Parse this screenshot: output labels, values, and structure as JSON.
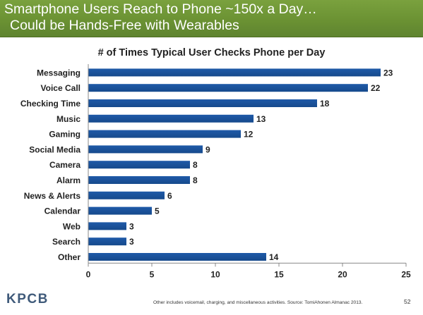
{
  "header": {
    "line1": "Smartphone Users Reach to Phone ~150x a Day…",
    "line2": "Could be Hands-Free with Wearables"
  },
  "footer": {
    "logo": "KPCB",
    "note": "Other includes voicemail, charging, and miscellaneous activities. Source: TomiAhonen Almanac 2013.",
    "page": "52"
  },
  "colors": {
    "header": "#6b9233",
    "bar": "#1f5aa8",
    "bar_dark": "#164a8c"
  },
  "chart_data": {
    "type": "bar",
    "orientation": "horizontal",
    "title": "# of Times Typical User Checks Phone per Day",
    "categories": [
      "Messaging",
      "Voice Call",
      "Checking Time",
      "Music",
      "Gaming",
      "Social Media",
      "Camera",
      "Alarm",
      "News & Alerts",
      "Calendar",
      "Web",
      "Search",
      "Other"
    ],
    "values": [
      23,
      22,
      18,
      13,
      12,
      9,
      8,
      8,
      6,
      5,
      3,
      3,
      14
    ],
    "xlim": [
      0,
      25
    ],
    "xticks": [
      0,
      5,
      10,
      15,
      20,
      25
    ],
    "xlabel": "",
    "ylabel": "",
    "grid": false,
    "legend": "none"
  }
}
